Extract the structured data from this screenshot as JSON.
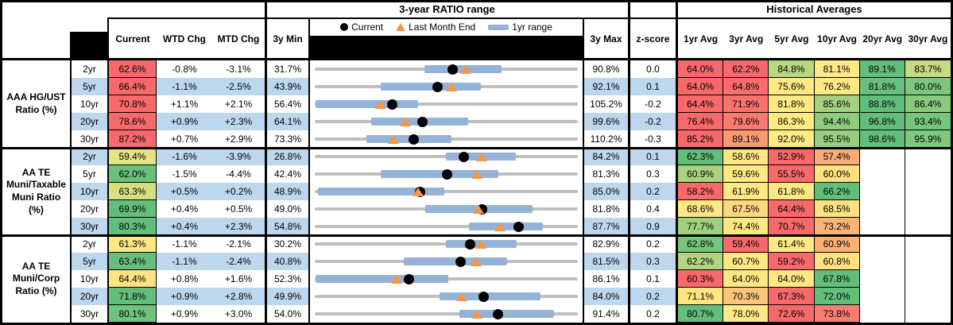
{
  "header": {
    "hist_title": "Historical Averages",
    "columns": {
      "current": "Current",
      "wtd": "WTD Chg",
      "mtd": "MTD Chg",
      "min": "3y Min",
      "max": "3y Max",
      "z": "z-score"
    },
    "avg_cols": [
      "1yr Avg",
      "3yr Avg",
      "5yr Avg",
      "10yr Avg",
      "20yr Avg",
      "30yr Avg"
    ]
  },
  "colors": {
    "stripe": "#BDD7EE",
    "bar": "#95B3D7",
    "track": "#BFBFBF",
    "triangle": "#F79646",
    "red": "#F8696B",
    "green": "#63BE7B",
    "yellow": "#FFE984"
  },
  "chart_data": {
    "type": "table",
    "title": "3-year RATIO range",
    "legend": [
      "Current",
      "Last Month End",
      "1yr range"
    ],
    "columns": [
      "Current",
      "WTD Chg",
      "MTD Chg",
      "3y Min",
      "3y Max",
      "z-score",
      "1yr Avg",
      "3yr Avg",
      "5yr Avg",
      "10yr Avg",
      "20yr Avg",
      "30yr Avg"
    ],
    "groups": [
      {
        "label": "AAA HG/UST Ratio (%)",
        "rows": [
          {
            "tenor": "2yr",
            "current": 62.6,
            "current_bg": "#F8696B",
            "wtd": -0.8,
            "mtd": -3.1,
            "min": 31.7,
            "max": 90.8,
            "z": 0.0,
            "lme": 65.7,
            "yr1_low": 56.4,
            "yr1_high": 73.6,
            "avgs": [
              64.0,
              62.2,
              84.8,
              81.1,
              89.1,
              83.7
            ],
            "avg_bg": [
              "#F8696B",
              "#F8696B",
              "#B7D780",
              "#FFE984",
              "#63BE7B",
              "#C6DB81"
            ]
          },
          {
            "tenor": "5yr",
            "current": 66.4,
            "current_bg": "#F8696B",
            "wtd": -1.1,
            "mtd": -2.5,
            "min": 43.9,
            "max": 92.1,
            "z": 0.1,
            "lme": 68.9,
            "yr1_low": 56.0,
            "yr1_high": 74.4,
            "avgs": [
              64.0,
              64.8,
              75.6,
              76.2,
              81.8,
              80.0
            ],
            "avg_bg": [
              "#F8696B",
              "#F96E6C",
              "#FFE984",
              "#FFE784",
              "#68C07C",
              "#7CC77D"
            ]
          },
          {
            "tenor": "10yr",
            "current": 70.8,
            "current_bg": "#F8696B",
            "wtd": 1.1,
            "mtd": 2.1,
            "min": 56.4,
            "max": 105.2,
            "z": -0.2,
            "lme": 68.7,
            "yr1_low": 56.5,
            "yr1_high": 75.5,
            "avgs": [
              64.4,
              71.9,
              81.8,
              85.6,
              88.8,
              86.4
            ],
            "avg_bg": [
              "#F8696B",
              "#F9736D",
              "#FFE984",
              "#A3D17F",
              "#63BE7B",
              "#8BCA7E"
            ]
          },
          {
            "tenor": "20yr",
            "current": 78.6,
            "current_bg": "#F8696B",
            "wtd": 0.9,
            "mtd": 2.3,
            "min": 64.1,
            "max": 99.6,
            "z": -0.2,
            "lme": 76.3,
            "yr1_low": 71.7,
            "yr1_high": 84.8,
            "avgs": [
              76.4,
              79.6,
              86.3,
              94.4,
              96.8,
              93.4
            ],
            "avg_bg": [
              "#F8696B",
              "#F97A70",
              "#FFEB84",
              "#90CC7E",
              "#63BE7B",
              "#75C57C"
            ]
          },
          {
            "tenor": "30yr",
            "current": 87.2,
            "current_bg": "#F8696B",
            "wtd": 0.7,
            "mtd": 2.9,
            "min": 73.3,
            "max": 110.2,
            "z": -0.3,
            "lme": 84.3,
            "yr1_low": 80.6,
            "yr1_high": 92.5,
            "avgs": [
              85.2,
              89.1,
              92.0,
              95.5,
              98.6,
              95.9
            ],
            "avg_bg": [
              "#F8696B",
              "#F99B70",
              "#FFEB84",
              "#98CE7F",
              "#63BE7B",
              "#7FC87D"
            ]
          }
        ]
      },
      {
        "label": "AA TE Muni/Taxable Muni Ratio (%)",
        "rows": [
          {
            "tenor": "2yr",
            "current": 59.4,
            "current_bg": "#E5E482",
            "wtd": -1.6,
            "mtd": -3.9,
            "min": 26.8,
            "max": 84.2,
            "z": 0.1,
            "lme": 63.3,
            "yr1_low": 55.4,
            "yr1_high": 70.7,
            "avgs": [
              62.3,
              58.6,
              52.9,
              57.4
            ],
            "avg_bg": [
              "#63BE7B",
              "#FFE884",
              "#F8696B",
              "#FBAC76"
            ]
          },
          {
            "tenor": "5yr",
            "current": 62.0,
            "current_bg": "#69C17C",
            "wtd": -1.5,
            "mtd": -4.4,
            "min": 42.4,
            "max": 81.3,
            "z": 0.3,
            "lme": 66.4,
            "yr1_low": 52.2,
            "yr1_high": 69.6,
            "avgs": [
              60.9,
              59.6,
              55.5,
              60.0
            ],
            "avg_bg": [
              "#A9D37F",
              "#FFE984",
              "#F8696B",
              "#FFE07F"
            ]
          },
          {
            "tenor": "10yr",
            "current": 63.3,
            "current_bg": "#D5E081",
            "wtd": 0.5,
            "mtd": 0.2,
            "min": 48.9,
            "max": 85.0,
            "z": 0.2,
            "lme": 63.1,
            "yr1_low": 49.3,
            "yr1_high": 66.7,
            "avgs": [
              58.2,
              61.9,
              61.8,
              66.2
            ],
            "avg_bg": [
              "#F8696B",
              "#FFE984",
              "#FFE884",
              "#63BE7B"
            ]
          },
          {
            "tenor": "20yr",
            "current": 69.9,
            "current_bg": "#63BE7B",
            "wtd": 0.4,
            "mtd": 0.5,
            "min": 49.0,
            "max": 81.8,
            "z": 0.4,
            "lme": 69.4,
            "yr1_low": 62.8,
            "yr1_high": 76.2,
            "avgs": [
              68.6,
              67.5,
              64.4,
              68.5
            ],
            "avg_bg": [
              "#FFE583",
              "#FED87E",
              "#F8696B",
              "#FEE182"
            ]
          },
          {
            "tenor": "30yr",
            "current": 80.3,
            "current_bg": "#63BE7B",
            "wtd": 0.4,
            "mtd": 2.3,
            "min": 54.8,
            "max": 87.7,
            "z": 0.9,
            "lme": 78.0,
            "yr1_low": 74.1,
            "yr1_high": 83.3,
            "avgs": [
              77.7,
              74.4,
              70.7,
              73.2
            ],
            "avg_bg": [
              "#9FD07F",
              "#FFE784",
              "#F8696B",
              "#FBB478"
            ]
          }
        ]
      },
      {
        "label": "AA TE Muni/Corp Ratio (%)",
        "rows": [
          {
            "tenor": "2yr",
            "current": 61.3,
            "current_bg": "#FFE783",
            "wtd": -1.1,
            "mtd": -2.1,
            "min": 30.2,
            "max": 82.9,
            "z": 0.2,
            "lme": 63.4,
            "yr1_low": 56.4,
            "yr1_high": 70.7,
            "avgs": [
              62.8,
              59.4,
              61.4,
              60.9
            ],
            "avg_bg": [
              "#77C57D",
              "#F8696B",
              "#FFE984",
              "#FBB077"
            ]
          },
          {
            "tenor": "5yr",
            "current": 63.4,
            "current_bg": "#66BF7B",
            "wtd": -1.1,
            "mtd": -2.4,
            "min": 40.8,
            "max": 81.5,
            "z": 0.3,
            "lme": 65.8,
            "yr1_low": 54.6,
            "yr1_high": 70.5,
            "avgs": [
              62.2,
              60.7,
              59.2,
              60.8
            ],
            "avg_bg": [
              "#B1D580",
              "#FFE884",
              "#F8696B",
              "#FFE382"
            ]
          },
          {
            "tenor": "10yr",
            "current": 64.4,
            "current_bg": "#FFE383",
            "wtd": 0.8,
            "mtd": 1.6,
            "min": 52.3,
            "max": 86.1,
            "z": 0.1,
            "lme": 62.8,
            "yr1_low": 52.4,
            "yr1_high": 69.5,
            "avgs": [
              60.3,
              64.0,
              64.0,
              67.8
            ],
            "avg_bg": [
              "#F8696B",
              "#FFE884",
              "#FFE884",
              "#63BE7B"
            ]
          },
          {
            "tenor": "20yr",
            "current": 71.8,
            "current_bg": "#63BE7B",
            "wtd": 0.9,
            "mtd": 2.8,
            "min": 49.9,
            "max": 84.0,
            "z": 0.2,
            "lme": 69.0,
            "yr1_low": 66.1,
            "yr1_high": 79.2,
            "avgs": [
              71.1,
              70.3,
              67.3,
              72.0
            ],
            "avg_bg": [
              "#FFE683",
              "#FCC57C",
              "#F8696B",
              "#63BE7B"
            ]
          },
          {
            "tenor": "30yr",
            "current": 80.1,
            "current_bg": "#6FC37C",
            "wtd": 0.9,
            "mtd": 3.0,
            "min": 54.0,
            "max": 91.4,
            "z": 0.2,
            "lme": 77.1,
            "yr1_low": 74.6,
            "yr1_high": 88.0,
            "avgs": [
              80.7,
              78.0,
              72.6,
              73.8
            ],
            "avg_bg": [
              "#63BE7B",
              "#FFE984",
              "#F8696B",
              "#F97E71"
            ]
          }
        ]
      }
    ]
  }
}
